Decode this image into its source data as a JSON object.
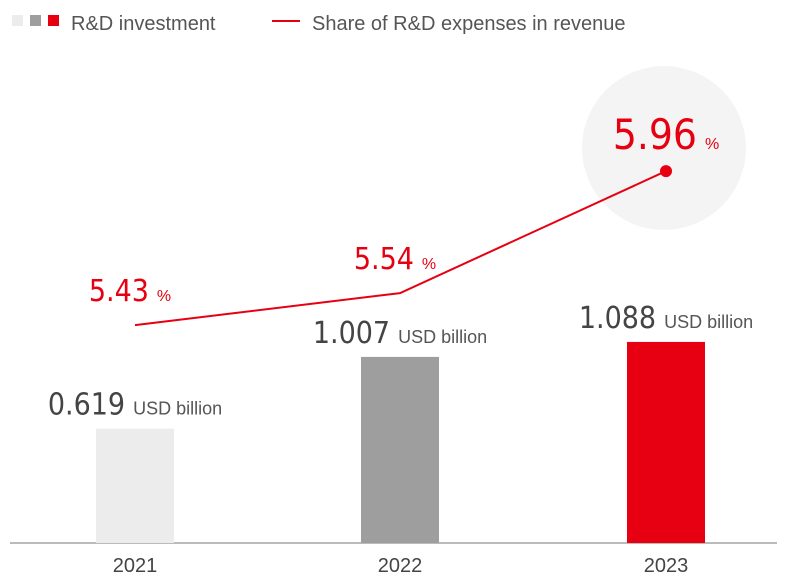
{
  "chart_data": {
    "type": "bar",
    "categories": [
      "2021",
      "2022",
      "2023"
    ],
    "series": [
      {
        "name": "R&D investment",
        "type": "bar",
        "colors": [
          "#ececec",
          "#9e9e9e",
          "#e60012"
        ],
        "values": [
          0.619,
          1.007,
          1.088
        ],
        "unit": "USD billion"
      },
      {
        "name": "Share of R&D expenses in revenue",
        "type": "line",
        "axis": "y2",
        "color": "#e60012",
        "values": [
          5.43,
          5.54,
          5.96
        ],
        "unit": "%"
      }
    ],
    "ylim": [
      0,
      2.5
    ],
    "y2lim": [
      4.68,
      6.27
    ]
  }
}
